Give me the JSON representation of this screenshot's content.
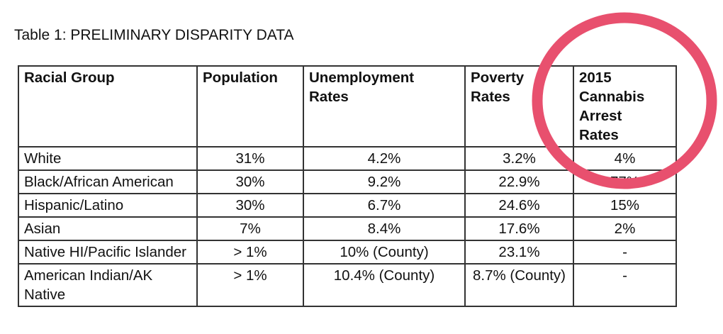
{
  "title": "Table 1: PRELIMINARY DISPARITY DATA",
  "headers": [
    "Racial Group",
    "Population",
    "Unemployment Rates",
    "Poverty Rates",
    "2015 Cannabis Arrest Rates"
  ],
  "rows": [
    [
      "White",
      "31%",
      "4.2%",
      "3.2%",
      "4%"
    ],
    [
      "Black/African American",
      "30%",
      "9.2%",
      "22.9%",
      "77%"
    ],
    [
      "Hispanic/Latino",
      "30%",
      "6.7%",
      "24.6%",
      "15%"
    ],
    [
      "Asian",
      "7%",
      "8.4%",
      "17.6%",
      "2%"
    ],
    [
      "Native HI/Pacific Islander",
      "> 1%",
      "10% (County)",
      "23.1%",
      "-"
    ],
    [
      "American Indian/AK Native",
      "> 1%",
      "10.4% (County)",
      "8.7% (County)",
      "-"
    ]
  ],
  "highlight_color": "#e8506e"
}
